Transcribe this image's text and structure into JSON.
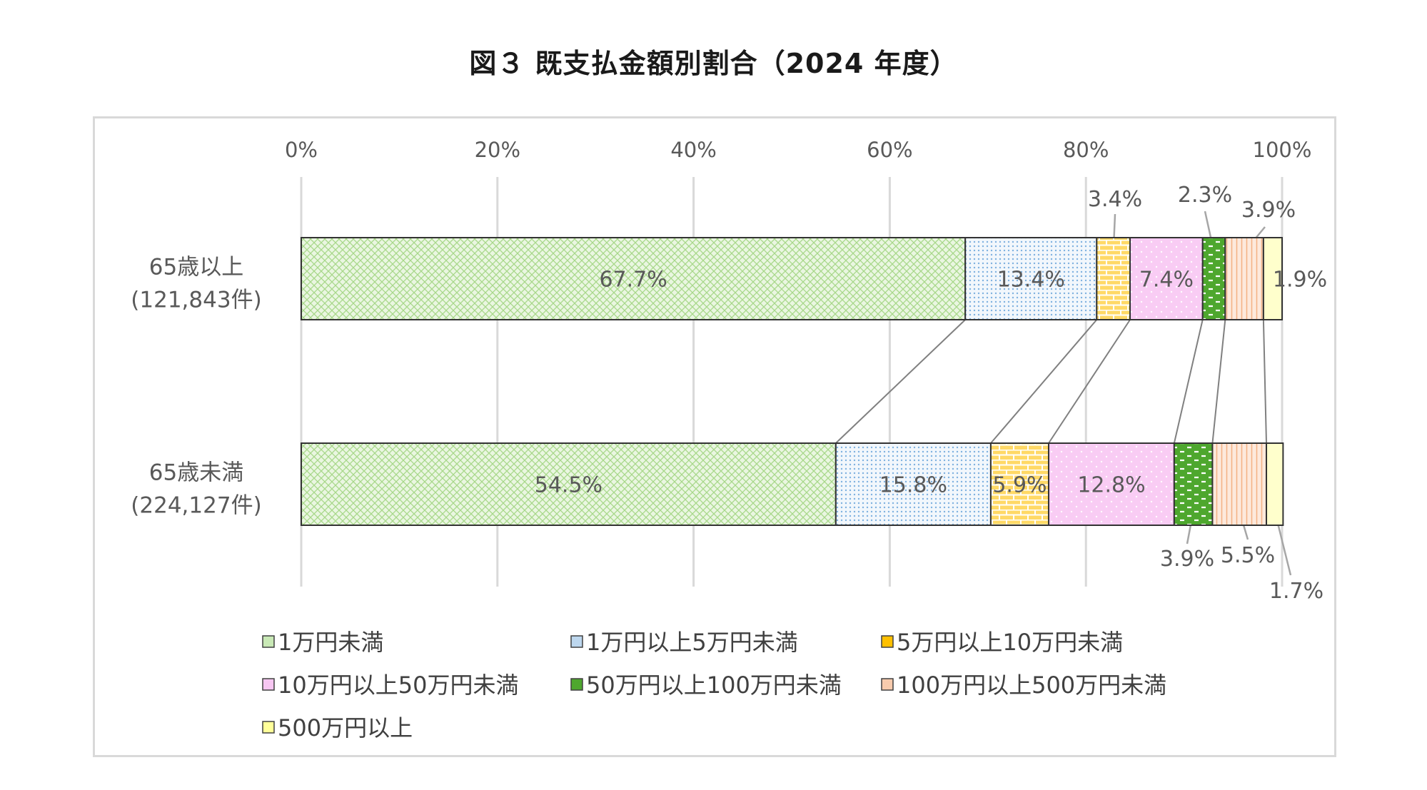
{
  "chart_data": {
    "type": "bar",
    "orientation": "horizontal",
    "stacked": "percent",
    "title": "図３ 既支払金額別割合（2024 年度）",
    "x_ticks": [
      "0%",
      "20%",
      "40%",
      "60%",
      "80%",
      "100%"
    ],
    "xlim": [
      0,
      100
    ],
    "grid": true,
    "legend_position": "bottom",
    "categories": [
      {
        "label": "65歳以上",
        "sublabel": "(121,843件)"
      },
      {
        "label": "65歳未満",
        "sublabel": "(224,127件)"
      }
    ],
    "series": [
      {
        "name": "1万円未満",
        "color": "#c9e9b6",
        "pattern": "lattice",
        "values": [
          67.7,
          54.5
        ],
        "labels": [
          "67.7%",
          "54.5%"
        ]
      },
      {
        "name": "1万円以上5万円未満",
        "color": "#bdd7ee",
        "pattern": "dots",
        "values": [
          13.4,
          15.8
        ],
        "labels": [
          "13.4%",
          "15.8%"
        ]
      },
      {
        "name": "5万円以上10万円未満",
        "color": "#ffc000",
        "pattern": "bricks",
        "values": [
          3.4,
          5.9
        ],
        "labels": [
          "3.4%",
          "5.9%"
        ]
      },
      {
        "name": "10万円以上50万円未満",
        "color": "#f7c6f2",
        "pattern": "sparse-dots",
        "values": [
          7.4,
          12.8
        ],
        "labels": [
          "7.4%",
          "12.8%"
        ]
      },
      {
        "name": "50万円以上100万円未満",
        "color": "#4ea72e",
        "pattern": "dashes",
        "values": [
          2.3,
          3.9
        ],
        "labels": [
          "2.3%",
          "3.9%"
        ]
      },
      {
        "name": "100万円以上500万円未満",
        "color": "#f8cbad",
        "pattern": "vertical-lines",
        "values": [
          3.9,
          5.5
        ],
        "labels": [
          "3.9%",
          "5.5%"
        ]
      },
      {
        "name": "500万円以上",
        "color": "#ffff99",
        "pattern": "plain",
        "values": [
          1.9,
          1.7
        ],
        "labels": [
          "1.9%",
          "1.7%"
        ]
      }
    ]
  }
}
